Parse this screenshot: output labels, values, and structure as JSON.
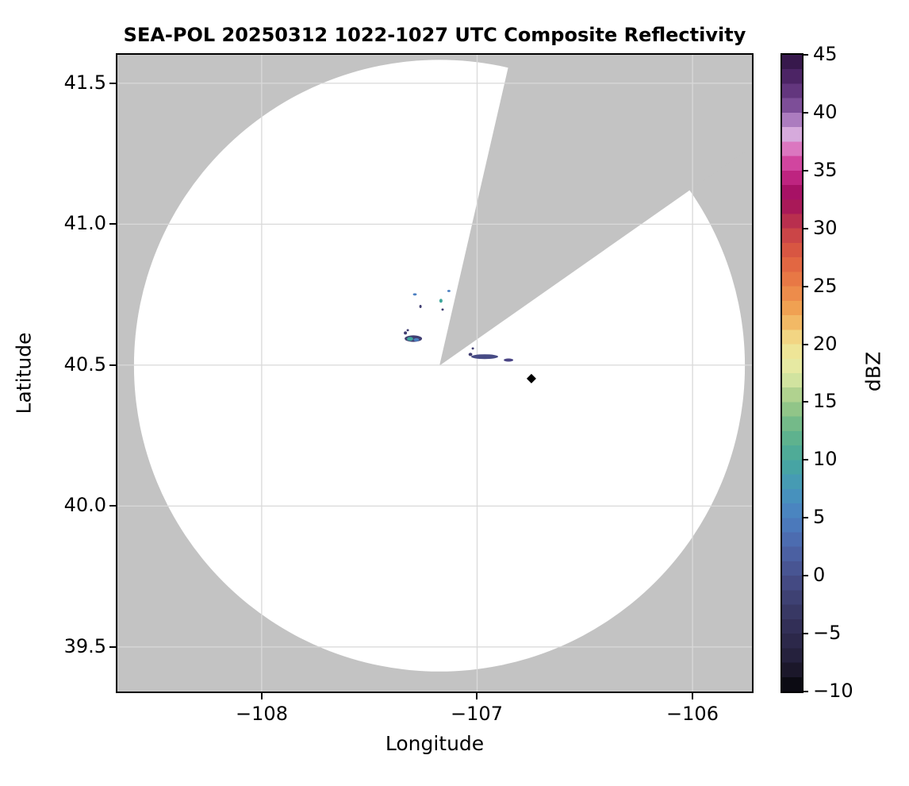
{
  "chart_data": {
    "type": "heatmap",
    "title": "SEA-POL 20250312 1022-1027 UTC Composite Reflectivity",
    "xlabel": "Longitude",
    "ylabel": "Latitude",
    "xlim": [
      -108.67,
      -105.724
    ],
    "ylim": [
      39.342,
      41.601
    ],
    "xticks": [
      -108,
      -107,
      -106
    ],
    "xtick_labels": [
      "−108",
      "−107",
      "−106"
    ],
    "yticks": [
      41.5,
      41.0,
      40.5,
      40.0,
      39.5
    ],
    "ytick_labels": [
      "41.5",
      "41.0",
      "40.5",
      "40.0",
      "39.5"
    ],
    "grid": true,
    "masked_background_color": "#c3c3c3",
    "coverage_color": "#ffffff",
    "gridline_color": "#d9d9d9",
    "radar": {
      "center_lon": -107.175,
      "center_lat": 40.498,
      "range_radius_deg_lon": 1.418,
      "range_radius_deg_lat": 1.085,
      "blocked_sector_bearings_deg": [
        13,
        55
      ]
    },
    "site_marker": {
      "lon": -106.748,
      "lat": 40.452,
      "shape": "diamond",
      "color": "#000000"
    },
    "echoes": [
      {
        "lon": -107.296,
        "lat": 40.594,
        "dlon": 0.081,
        "dlat": 0.023,
        "dbz": -1,
        "color": "#413e72"
      },
      {
        "lon": -107.311,
        "lat": 40.593,
        "dlon": 0.029,
        "dlat": 0.014,
        "dbz": 9,
        "color": "#3ea79b"
      },
      {
        "lon": -107.282,
        "lat": 40.59,
        "dlon": 0.026,
        "dlat": 0.011,
        "dbz": 5,
        "color": "#4b7fc1"
      },
      {
        "lon": -107.333,
        "lat": 40.614,
        "dlon": 0.015,
        "dlat": 0.011,
        "dbz": -2,
        "color": "#413e72"
      },
      {
        "lon": -107.322,
        "lat": 40.624,
        "dlon": 0.011,
        "dlat": 0.008,
        "dbz": -2,
        "color": "#413e72"
      },
      {
        "lon": -107.289,
        "lat": 40.751,
        "dlon": 0.018,
        "dlat": 0.008,
        "dbz": 4,
        "color": "#4b7fc1"
      },
      {
        "lon": -107.263,
        "lat": 40.708,
        "dlon": 0.011,
        "dlat": 0.011,
        "dbz": -2,
        "color": "#413e72"
      },
      {
        "lon": -107.168,
        "lat": 40.728,
        "dlon": 0.015,
        "dlat": 0.014,
        "dbz": 9,
        "color": "#3ea79b"
      },
      {
        "lon": -107.16,
        "lat": 40.697,
        "dlon": 0.011,
        "dlat": 0.008,
        "dbz": -2,
        "color": "#413e72"
      },
      {
        "lon": -107.131,
        "lat": 40.763,
        "dlon": 0.015,
        "dlat": 0.008,
        "dbz": 4,
        "color": "#4b7fc1"
      },
      {
        "lon": -106.965,
        "lat": 40.53,
        "dlon": 0.125,
        "dlat": 0.017,
        "dbz": 0,
        "color": "#474b85"
      },
      {
        "lon": -107.031,
        "lat": 40.538,
        "dlon": 0.018,
        "dlat": 0.011,
        "dbz": -2,
        "color": "#413e72"
      },
      {
        "lon": -107.02,
        "lat": 40.559,
        "dlon": 0.011,
        "dlat": 0.008,
        "dbz": -2,
        "color": "#413e72"
      },
      {
        "lon": -106.854,
        "lat": 40.518,
        "dlon": 0.044,
        "dlat": 0.011,
        "dbz": 0,
        "color": "#4a4585"
      }
    ],
    "colorbar": {
      "label": "dBZ",
      "min": -10,
      "max": 45,
      "band_step": 1.25,
      "tick_values": [
        45,
        40,
        35,
        30,
        25,
        20,
        15,
        10,
        5,
        0,
        -5,
        -10
      ],
      "tick_labels": [
        "45",
        "40",
        "35",
        "30",
        "25",
        "20",
        "15",
        "10",
        "5",
        "0",
        "−5",
        "−10"
      ],
      "stops": [
        [
          -10,
          "#050507"
        ],
        [
          -7.5,
          "#221d36"
        ],
        [
          -5,
          "#2f2b50"
        ],
        [
          -2.5,
          "#3b3c6b"
        ],
        [
          0,
          "#474f8b"
        ],
        [
          2.5,
          "#4c66aa"
        ],
        [
          5,
          "#4b7fc1"
        ],
        [
          7.5,
          "#4697bb"
        ],
        [
          10,
          "#47a89c"
        ],
        [
          12.5,
          "#66b589"
        ],
        [
          15,
          "#9fca87"
        ],
        [
          17.5,
          "#e2eba7"
        ],
        [
          20,
          "#f2e392"
        ],
        [
          22.5,
          "#f2ab56"
        ],
        [
          25,
          "#eb8147"
        ],
        [
          27.5,
          "#df5e40"
        ],
        [
          30,
          "#c43c49"
        ],
        [
          31.5,
          "#aa1c55"
        ],
        [
          33,
          "#a50f62"
        ],
        [
          35,
          "#c92e8e"
        ],
        [
          36.5,
          "#dc64b6"
        ],
        [
          38,
          "#d9aede"
        ],
        [
          39,
          "#c191cf"
        ],
        [
          40,
          "#8a5aa5"
        ],
        [
          41.5,
          "#6a3c85"
        ],
        [
          43,
          "#4e2567"
        ],
        [
          45,
          "#2c123f"
        ]
      ]
    }
  }
}
